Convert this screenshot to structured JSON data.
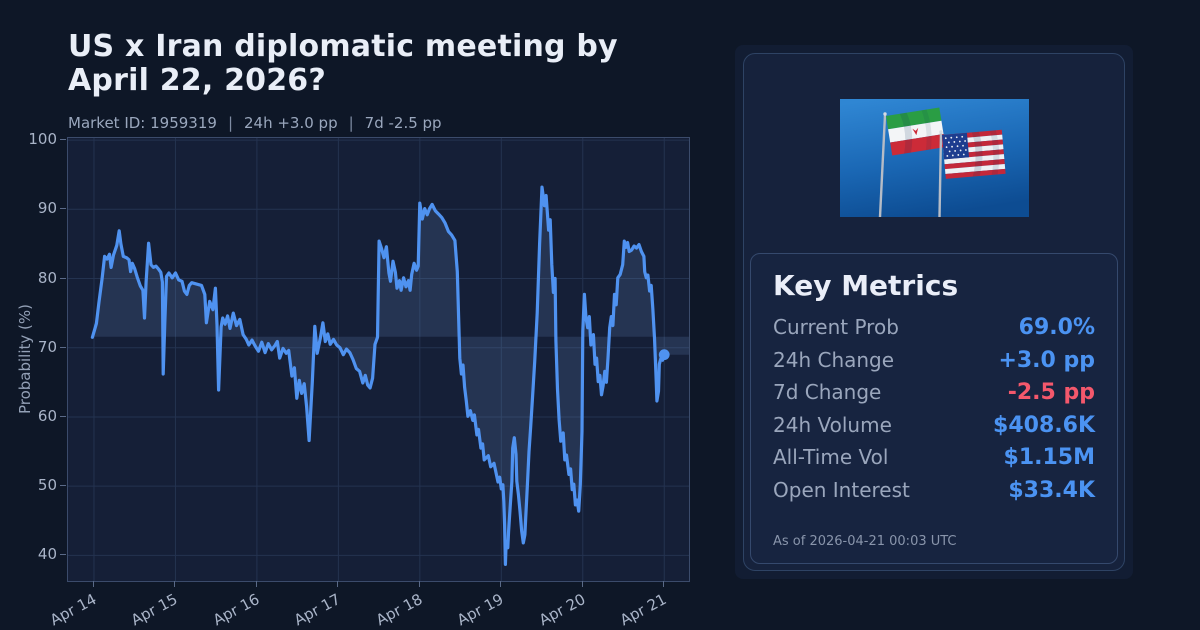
{
  "header": {
    "title": "US x Iran diplomatic meeting by April 22, 2026?",
    "market_id": "Market ID: 1959319",
    "separator": "|",
    "change_24h": "24h +3.0 pp",
    "change_7d": "7d -2.5 pp"
  },
  "chart_data": {
    "type": "line",
    "title": "US x Iran diplomatic meeting by April 22, 2026?",
    "xlabel": "",
    "ylabel": "Probability (%)",
    "x_unit": "days since 2026-04-14 00:00 UTC",
    "x_tick_positions": [
      0,
      1,
      2,
      3,
      4,
      5,
      6,
      7
    ],
    "x_tick_labels": [
      "Apr 14",
      "Apr 15",
      "Apr 16",
      "Apr 17",
      "Apr 18",
      "Apr 19",
      "Apr 20",
      "Apr 21"
    ],
    "y_ticks": [
      40,
      50,
      60,
      70,
      80,
      90,
      100
    ],
    "xlim": [
      -0.319,
      7.304
    ],
    "ylim": [
      36.3,
      100.3
    ],
    "grid": true,
    "baseline": 71.6,
    "fill_to_right_edge": true,
    "end_marker": true,
    "last_value": 69.0,
    "line_color": "#4f92f0",
    "fill_color": "rgba(120,160,220,0.17)",
    "grid_color": "#243350",
    "series": [
      {
        "name": "Probability (%)",
        "points": [
          [
            -0.02,
            71.5
          ],
          [
            0.03,
            73.5
          ],
          [
            0.06,
            76.5
          ],
          [
            0.1,
            80
          ],
          [
            0.13,
            83.2
          ],
          [
            0.16,
            82.8
          ],
          [
            0.19,
            83.5
          ],
          [
            0.21,
            81.6
          ],
          [
            0.24,
            83.4
          ],
          [
            0.28,
            84.8
          ],
          [
            0.31,
            86.9
          ],
          [
            0.33,
            85
          ],
          [
            0.36,
            83.2
          ],
          [
            0.4,
            83
          ],
          [
            0.43,
            82.7
          ],
          [
            0.45,
            81
          ],
          [
            0.47,
            82.2
          ],
          [
            0.5,
            81.4
          ],
          [
            0.53,
            80.2
          ],
          [
            0.57,
            78.9
          ],
          [
            0.6,
            78.3
          ],
          [
            0.62,
            74.3
          ],
          [
            0.64,
            79.5
          ],
          [
            0.67,
            85.1
          ],
          [
            0.7,
            82
          ],
          [
            0.73,
            81.6
          ],
          [
            0.76,
            81.8
          ],
          [
            0.79,
            81.4
          ],
          [
            0.82,
            80.9
          ],
          [
            0.84,
            79.5
          ],
          [
            0.85,
            66.2
          ],
          [
            0.87,
            74
          ],
          [
            0.89,
            80.3
          ],
          [
            0.92,
            80.8
          ],
          [
            0.96,
            80.1
          ],
          [
            1,
            80.8
          ],
          [
            1.04,
            79.8
          ],
          [
            1.08,
            79.6
          ],
          [
            1.11,
            78.2
          ],
          [
            1.14,
            77.7
          ],
          [
            1.17,
            79
          ],
          [
            1.2,
            79.4
          ],
          [
            1.26,
            79.2
          ],
          [
            1.32,
            79
          ],
          [
            1.36,
            77.7
          ],
          [
            1.38,
            73.6
          ],
          [
            1.42,
            76.7
          ],
          [
            1.46,
            75.5
          ],
          [
            1.49,
            78.6
          ],
          [
            1.51,
            73.3
          ],
          [
            1.53,
            63.9
          ],
          [
            1.56,
            73
          ],
          [
            1.58,
            74.3
          ],
          [
            1.61,
            73.4
          ],
          [
            1.64,
            74.6
          ],
          [
            1.67,
            72.8
          ],
          [
            1.71,
            75
          ],
          [
            1.75,
            73.2
          ],
          [
            1.79,
            74.1
          ],
          [
            1.83,
            71.9
          ],
          [
            1.87,
            71.2
          ],
          [
            1.9,
            70.4
          ],
          [
            1.94,
            71.1
          ],
          [
            1.98,
            70.2
          ],
          [
            2.02,
            69.5
          ],
          [
            2.06,
            70.8
          ],
          [
            2.1,
            69.3
          ],
          [
            2.14,
            70.6
          ],
          [
            2.18,
            69.7
          ],
          [
            2.22,
            70.3
          ],
          [
            2.25,
            70.9
          ],
          [
            2.28,
            68.5
          ],
          [
            2.32,
            69.9
          ],
          [
            2.36,
            69.2
          ],
          [
            2.39,
            69.6
          ],
          [
            2.43,
            65.9
          ],
          [
            2.46,
            67.1
          ],
          [
            2.49,
            62.7
          ],
          [
            2.52,
            65.3
          ],
          [
            2.55,
            63.4
          ],
          [
            2.58,
            64.8
          ],
          [
            2.61,
            61.5
          ],
          [
            2.64,
            56.6
          ],
          [
            2.68,
            65
          ],
          [
            2.71,
            73.1
          ],
          [
            2.74,
            69.2
          ],
          [
            2.78,
            71.5
          ],
          [
            2.81,
            73.6
          ],
          [
            2.84,
            70.9
          ],
          [
            2.87,
            72
          ],
          [
            2.9,
            70.5
          ],
          [
            2.94,
            71.2
          ],
          [
            2.98,
            70.4
          ],
          [
            3.02,
            70
          ],
          [
            3.06,
            69
          ],
          [
            3.1,
            69.8
          ],
          [
            3.14,
            69.3
          ],
          [
            3.18,
            68.3
          ],
          [
            3.22,
            67
          ],
          [
            3.26,
            66.6
          ],
          [
            3.3,
            64.9
          ],
          [
            3.33,
            66
          ],
          [
            3.36,
            64.6
          ],
          [
            3.39,
            64.2
          ],
          [
            3.42,
            65.6
          ],
          [
            3.45,
            70.5
          ],
          [
            3.48,
            71.5
          ],
          [
            3.5,
            85.4
          ],
          [
            3.53,
            84.3
          ],
          [
            3.56,
            83
          ],
          [
            3.59,
            84.6
          ],
          [
            3.62,
            80.8
          ],
          [
            3.64,
            79.6
          ],
          [
            3.67,
            82.5
          ],
          [
            3.7,
            80.9
          ],
          [
            3.72,
            78.6
          ],
          [
            3.75,
            79.7
          ],
          [
            3.77,
            78.3
          ],
          [
            3.8,
            80.1
          ],
          [
            3.83,
            78.8
          ],
          [
            3.86,
            79.7
          ],
          [
            3.88,
            78.3
          ],
          [
            3.9,
            80.6
          ],
          [
            3.93,
            82.2
          ],
          [
            3.96,
            81.2
          ],
          [
            3.98,
            81.8
          ],
          [
            4,
            90.9
          ],
          [
            4.03,
            88.6
          ],
          [
            4.06,
            90.1
          ],
          [
            4.09,
            89.2
          ],
          [
            4.12,
            90.1
          ],
          [
            4.15,
            90.7
          ],
          [
            4.19,
            89.8
          ],
          [
            4.23,
            89.3
          ],
          [
            4.27,
            88.8
          ],
          [
            4.31,
            88
          ],
          [
            4.35,
            86.8
          ],
          [
            4.39,
            86.3
          ],
          [
            4.43,
            85.5
          ],
          [
            4.46,
            81
          ],
          [
            4.47,
            77
          ],
          [
            4.49,
            68.5
          ],
          [
            4.51,
            66.2
          ],
          [
            4.53,
            67.5
          ],
          [
            4.55,
            64.3
          ],
          [
            4.57,
            62.3
          ],
          [
            4.59,
            60.1
          ],
          [
            4.62,
            60.9
          ],
          [
            4.65,
            59.5
          ],
          [
            4.67,
            60.3
          ],
          [
            4.7,
            57.4
          ],
          [
            4.72,
            58.2
          ],
          [
            4.75,
            55.5
          ],
          [
            4.77,
            56.1
          ],
          [
            4.79,
            53.8
          ],
          [
            4.84,
            54.4
          ],
          [
            4.87,
            52.8
          ],
          [
            4.91,
            53.3
          ],
          [
            4.96,
            50.6
          ],
          [
            4.98,
            51.3
          ],
          [
            5,
            49.6
          ],
          [
            5.02,
            50.2
          ],
          [
            5.03,
            47.8
          ],
          [
            5.04,
            44.4
          ],
          [
            5.05,
            38.7
          ],
          [
            5.06,
            42
          ],
          [
            5.08,
            41.1
          ],
          [
            5.09,
            43.5
          ],
          [
            5.11,
            47.3
          ],
          [
            5.13,
            50.7
          ],
          [
            5.14,
            55.5
          ],
          [
            5.16,
            57
          ],
          [
            5.18,
            54.6
          ],
          [
            5.19,
            50.7
          ],
          [
            5.21,
            48.8
          ],
          [
            5.23,
            46.4
          ],
          [
            5.25,
            43.5
          ],
          [
            5.27,
            41.8
          ],
          [
            5.29,
            43
          ],
          [
            5.3,
            45.4
          ],
          [
            5.32,
            50.2
          ],
          [
            5.34,
            55
          ],
          [
            5.36,
            58.4
          ],
          [
            5.38,
            62.3
          ],
          [
            5.41,
            68
          ],
          [
            5.44,
            75
          ],
          [
            5.47,
            85
          ],
          [
            5.5,
            93.2
          ],
          [
            5.53,
            90.5
          ],
          [
            5.55,
            92
          ],
          [
            5.58,
            87
          ],
          [
            5.6,
            88.5
          ],
          [
            5.62,
            82
          ],
          [
            5.64,
            78
          ],
          [
            5.66,
            80
          ],
          [
            5.67,
            71
          ],
          [
            5.69,
            64
          ],
          [
            5.71,
            59.6
          ],
          [
            5.73,
            56.5
          ],
          [
            5.76,
            57.7
          ],
          [
            5.78,
            53.8
          ],
          [
            5.8,
            54.5
          ],
          [
            5.83,
            51.7
          ],
          [
            5.85,
            52.5
          ],
          [
            5.87,
            49.5
          ],
          [
            5.89,
            50.3
          ],
          [
            5.91,
            47.3
          ],
          [
            5.93,
            48
          ],
          [
            5.95,
            46.4
          ],
          [
            5.97,
            50.2
          ],
          [
            5.99,
            57.9
          ],
          [
            6,
            72.4
          ],
          [
            6.02,
            77.7
          ],
          [
            6.04,
            74.3
          ],
          [
            6.06,
            72.9
          ],
          [
            6.08,
            74.5
          ],
          [
            6.1,
            70.4
          ],
          [
            6.13,
            71.9
          ],
          [
            6.15,
            67.6
          ],
          [
            6.17,
            68.5
          ],
          [
            6.19,
            65.1
          ],
          [
            6.21,
            66
          ],
          [
            6.23,
            63.2
          ],
          [
            6.25,
            64.5
          ],
          [
            6.27,
            66.6
          ],
          [
            6.29,
            65
          ],
          [
            6.31,
            68.5
          ],
          [
            6.33,
            72.9
          ],
          [
            6.35,
            74.5
          ],
          [
            6.37,
            73.2
          ],
          [
            6.39,
            77.7
          ],
          [
            6.41,
            76.2
          ],
          [
            6.43,
            80.1
          ],
          [
            6.46,
            80.6
          ],
          [
            6.49,
            82
          ],
          [
            6.51,
            85.4
          ],
          [
            6.53,
            84.5
          ],
          [
            6.55,
            85.2
          ],
          [
            6.57,
            83.9
          ],
          [
            6.6,
            84.1
          ],
          [
            6.63,
            84.7
          ],
          [
            6.66,
            84.4
          ],
          [
            6.69,
            84.9
          ],
          [
            6.72,
            83.9
          ],
          [
            6.75,
            83.2
          ],
          [
            6.76,
            81
          ],
          [
            6.78,
            80.1
          ],
          [
            6.8,
            80.5
          ],
          [
            6.82,
            78.2
          ],
          [
            6.84,
            79
          ],
          [
            6.86,
            75.7
          ],
          [
            6.88,
            71.4
          ],
          [
            6.9,
            65.6
          ],
          [
            6.91,
            62.3
          ],
          [
            6.93,
            63.7
          ],
          [
            6.94,
            67.6
          ],
          [
            6.96,
            68.5
          ],
          [
            6.98,
            68.2
          ],
          [
            7.0,
            69.0
          ]
        ]
      }
    ]
  },
  "panel": {
    "image": {
      "name": "us-iran-flags-photo",
      "flags": [
        "iran-flag",
        "us-flag"
      ]
    },
    "metrics": {
      "title": "Key Metrics",
      "rows": [
        {
          "label": "Current Prob",
          "value": "69.0%",
          "dir": "up"
        },
        {
          "label": "24h Change",
          "value": "+3.0 pp",
          "dir": "up"
        },
        {
          "label": "7d Change",
          "value": "-2.5 pp",
          "dir": "down"
        },
        {
          "label": "24h Volume",
          "value": "$408.6K",
          "dir": "up"
        },
        {
          "label": "All-Time Vol",
          "value": "$1.15M",
          "dir": "up"
        },
        {
          "label": "Open Interest",
          "value": "$33.4K",
          "dir": "up"
        }
      ],
      "as_of": "As of 2026-04-21 00:03 UTC"
    }
  },
  "colors": {
    "page_bg": "#0e1727",
    "plot_bg": "#151f37",
    "accent_blue": "#4b93f2",
    "negative_red": "#f4586c",
    "line_blue": "#4f92f0"
  }
}
